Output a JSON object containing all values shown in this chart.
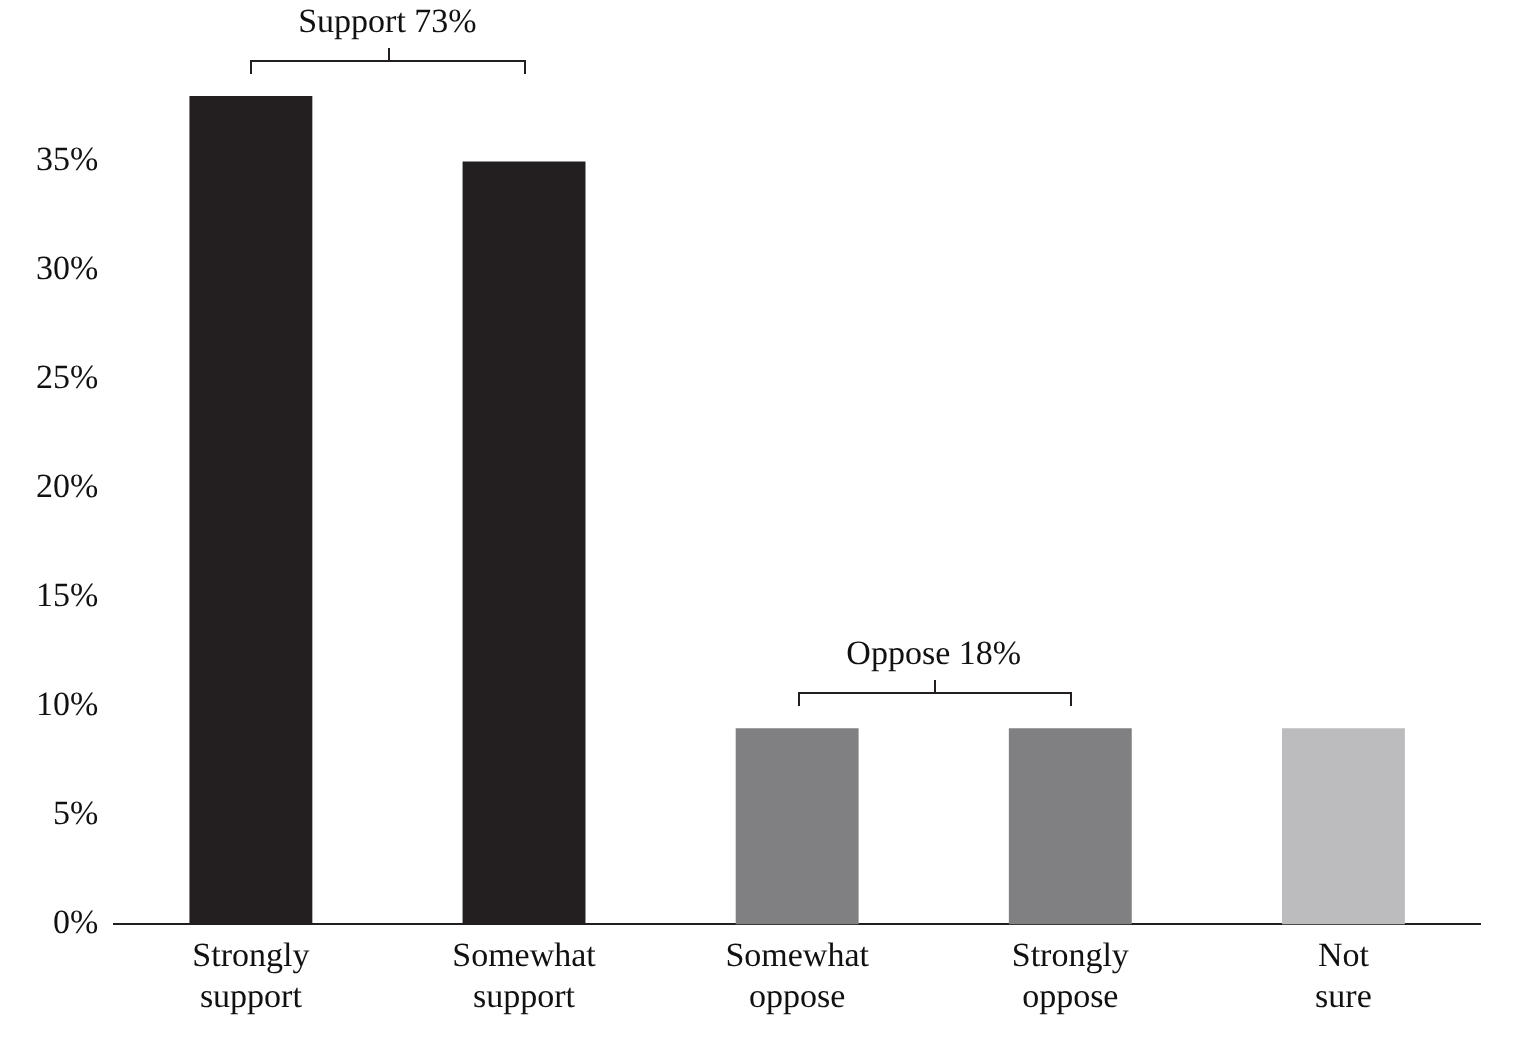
{
  "chart_data": {
    "type": "bar",
    "categories": [
      "Strongly support",
      "Somewhat support",
      "Somewhat oppose",
      "Strongly oppose",
      "Not sure"
    ],
    "values": [
      38,
      35,
      9,
      9,
      9
    ],
    "colors": [
      "#231f20",
      "#231f20",
      "#808083",
      "#808083",
      "#bcbcbe"
    ],
    "ylim": [
      0,
      38
    ],
    "yticks": [
      {
        "value": 0,
        "label": "0%"
      },
      {
        "value": 5,
        "label": "5%"
      },
      {
        "value": 10,
        "label": "10%"
      },
      {
        "value": 15,
        "label": "15%"
      },
      {
        "value": 20,
        "label": "20%"
      },
      {
        "value": 25,
        "label": "25%"
      },
      {
        "value": 30,
        "label": "30%"
      },
      {
        "value": 35,
        "label": "35%"
      }
    ],
    "grid": false,
    "legend": false,
    "annotations": [
      "Support 73%",
      "Oppose 18%"
    ]
  }
}
